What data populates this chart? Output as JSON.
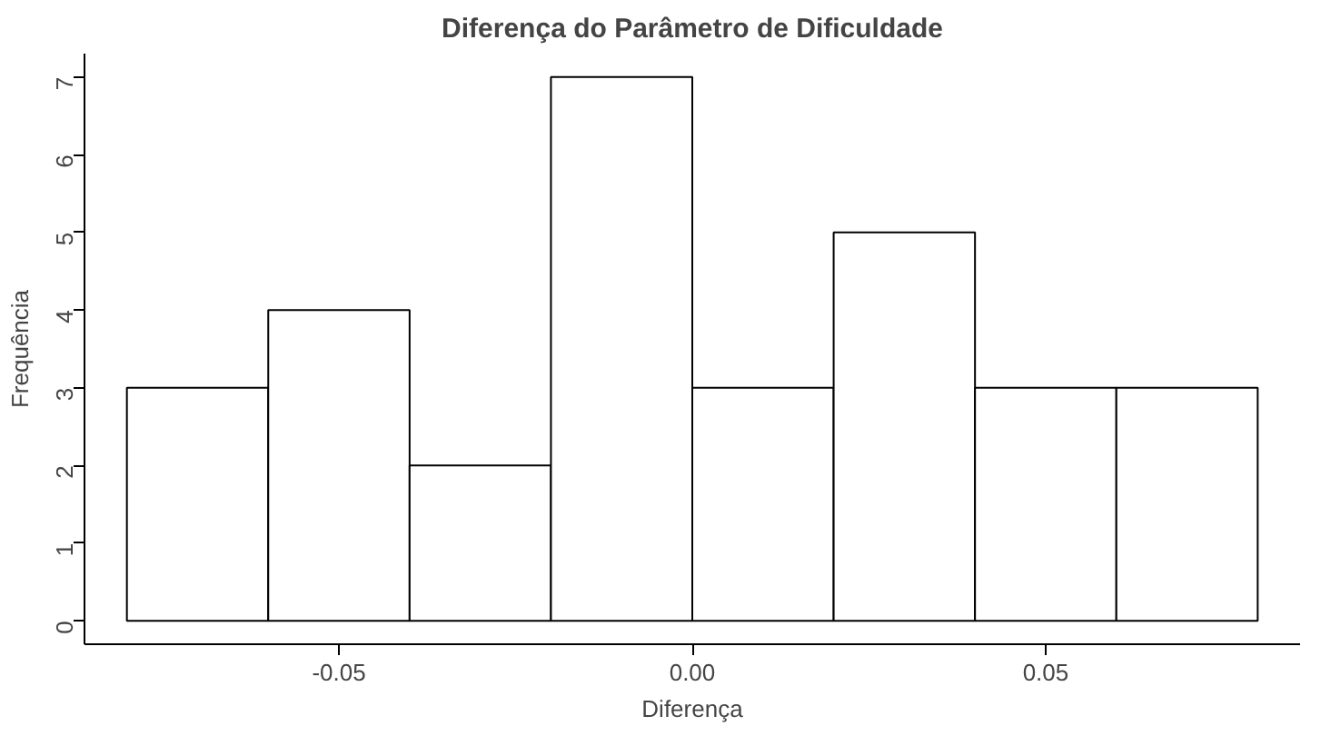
{
  "chart_data": {
    "type": "histogram",
    "title": "Diferença do Parâmetro de Dificuldade",
    "xlabel": "Diferença",
    "ylabel": "Frequência",
    "bins": [
      -0.08,
      -0.06,
      -0.04,
      -0.02,
      0,
      0.02,
      0.04,
      0.06,
      0.08
    ],
    "values": [
      3,
      4,
      2,
      7,
      3,
      5,
      3,
      3
    ],
    "color": "#ffffff",
    "xlim": [
      -0.086,
      0.086
    ],
    "ylim": [
      -0.3,
      7.3
    ],
    "xticks": [
      -0.05,
      {
        "value": 0,
        "label": "0.00"
      },
      0.05
    ],
    "yticks": [
      0,
      1,
      2,
      3,
      4,
      5,
      6,
      7
    ]
  }
}
